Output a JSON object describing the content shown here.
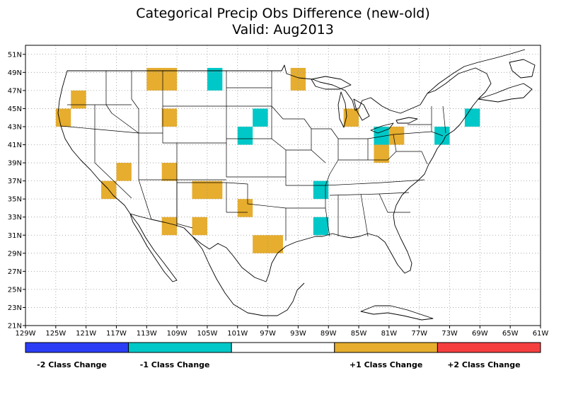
{
  "title": "Categorical Precip Obs Difference (new-old)",
  "subtitle": "Valid: Aug2013",
  "axes": {
    "lon_labels": [
      "129W",
      "125W",
      "121W",
      "117W",
      "113W",
      "109W",
      "105W",
      "101W",
      "97W",
      "93W",
      "89W",
      "85W",
      "81W",
      "77W",
      "73W",
      "69W",
      "65W",
      "61W"
    ],
    "lat_labels": [
      "51N",
      "49N",
      "47N",
      "45N",
      "43N",
      "41N",
      "39N",
      "37N",
      "35N",
      "33N",
      "31N",
      "29N",
      "27N",
      "25N",
      "23N",
      "21N"
    ],
    "lon_range": [
      -129,
      -61
    ],
    "lat_range": [
      21,
      52
    ]
  },
  "colors": {
    "minus2": "#2a3df5",
    "minus1": "#00c8c8",
    "zero": "#ffffff",
    "plus1": "#e6ad2e",
    "plus2": "#f53f3f"
  },
  "legend": {
    "labels": [
      "-2 Class Change",
      "-1 Class Change",
      "+1 Class Change",
      "+2 Class Change"
    ]
  },
  "cells": [
    {
      "lon0": -113,
      "lon1": -109,
      "lat0": 47,
      "lat1": 49.5,
      "change": 1
    },
    {
      "lon0": -105,
      "lon1": -103,
      "lat0": 47,
      "lat1": 49.5,
      "change": -1
    },
    {
      "lon0": -94,
      "lon1": -92,
      "lat0": 47,
      "lat1": 49.5,
      "change": 1
    },
    {
      "lon0": -123,
      "lon1": -121,
      "lat0": 45,
      "lat1": 47,
      "change": 1
    },
    {
      "lon0": -125,
      "lon1": -123,
      "lat0": 43,
      "lat1": 45,
      "change": 1
    },
    {
      "lon0": -111,
      "lon1": -109,
      "lat0": 43,
      "lat1": 45,
      "change": 1
    },
    {
      "lon0": -99,
      "lon1": -97,
      "lat0": 43,
      "lat1": 45,
      "change": -1
    },
    {
      "lon0": -87,
      "lon1": -85,
      "lat0": 43,
      "lat1": 45,
      "change": 1
    },
    {
      "lon0": -71,
      "lon1": -69,
      "lat0": 43,
      "lat1": 45,
      "change": -1
    },
    {
      "lon0": -101,
      "lon1": -99,
      "lat0": 41,
      "lat1": 43,
      "change": -1
    },
    {
      "lon0": -83,
      "lon1": -81,
      "lat0": 41,
      "lat1": 43,
      "change": -1
    },
    {
      "lon0": -81,
      "lon1": -79,
      "lat0": 41,
      "lat1": 43,
      "change": 1
    },
    {
      "lon0": -75,
      "lon1": -73,
      "lat0": 41,
      "lat1": 43,
      "change": -1
    },
    {
      "lon0": -83,
      "lon1": -81,
      "lat0": 39,
      "lat1": 41,
      "change": 1
    },
    {
      "lon0": -117,
      "lon1": -115,
      "lat0": 37,
      "lat1": 39,
      "change": 1
    },
    {
      "lon0": -111,
      "lon1": -109,
      "lat0": 37,
      "lat1": 39,
      "change": 1
    },
    {
      "lon0": -119,
      "lon1": -117,
      "lat0": 35,
      "lat1": 37,
      "change": 1
    },
    {
      "lon0": -107,
      "lon1": -103,
      "lat0": 35,
      "lat1": 37,
      "change": 1
    },
    {
      "lon0": -91,
      "lon1": -89,
      "lat0": 35,
      "lat1": 37,
      "change": -1
    },
    {
      "lon0": -101,
      "lon1": -99,
      "lat0": 33,
      "lat1": 35,
      "change": 1
    },
    {
      "lon0": -111,
      "lon1": -109,
      "lat0": 31,
      "lat1": 33,
      "change": 1
    },
    {
      "lon0": -107,
      "lon1": -105,
      "lat0": 31,
      "lat1": 33,
      "change": 1
    },
    {
      "lon0": -91,
      "lon1": -89,
      "lat0": 31,
      "lat1": 33,
      "change": -1
    },
    {
      "lon0": -99,
      "lon1": -95,
      "lat0": 29,
      "lat1": 31,
      "change": 1
    }
  ]
}
